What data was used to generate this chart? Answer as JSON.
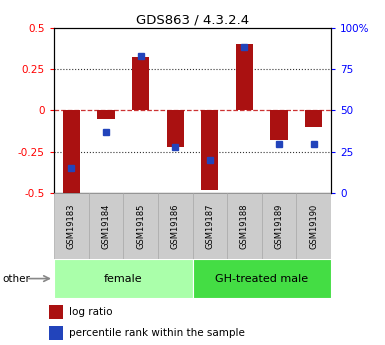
{
  "title": "GDS863 / 4.3.2.4",
  "samples": [
    "GSM19183",
    "GSM19184",
    "GSM19185",
    "GSM19186",
    "GSM19187",
    "GSM19188",
    "GSM19189",
    "GSM19190"
  ],
  "log_ratio": [
    -0.5,
    -0.05,
    0.32,
    -0.22,
    -0.48,
    0.4,
    -0.18,
    -0.1
  ],
  "percentile_rank": [
    15,
    37,
    83,
    28,
    20,
    88,
    30,
    30
  ],
  "groups": [
    {
      "label": "female",
      "start": 0,
      "end": 4,
      "color": "#aaffaa"
    },
    {
      "label": "GH-treated male",
      "start": 4,
      "end": 8,
      "color": "#44dd44"
    }
  ],
  "ylim": [
    -0.5,
    0.5
  ],
  "yticks_left": [
    -0.5,
    -0.25,
    0,
    0.25,
    0.5
  ],
  "yticks_right": [
    0,
    25,
    50,
    75,
    100
  ],
  "bar_color_red": "#aa1111",
  "bar_color_blue": "#2244bb",
  "hline_color": "#cc3333",
  "dotted_color": "#333333",
  "bg_color": "#ffffff",
  "bar_width": 0.5,
  "other_label": "other",
  "gray_box_color": "#cccccc",
  "gray_box_edge": "#aaaaaa"
}
